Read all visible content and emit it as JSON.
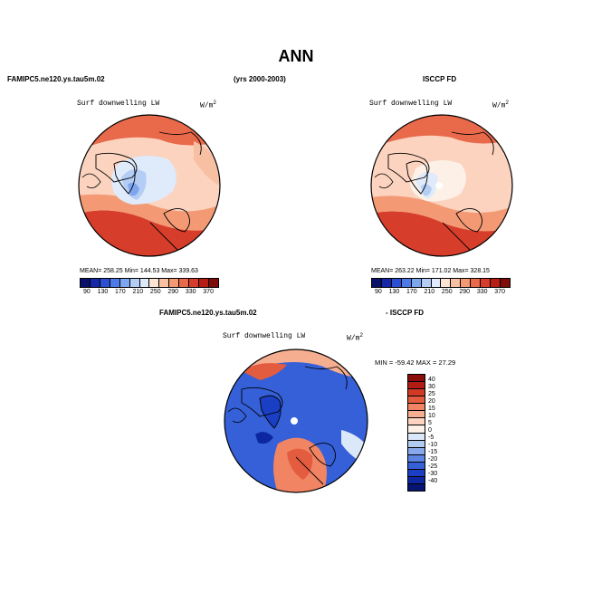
{
  "title": "ANN",
  "top_left_case": "FAMIPC5.ne120.ys.tau5m.02",
  "top_years": "(yrs 2000-2003)",
  "top_right_case": "ISCCP FD",
  "bottom_case": "FAMIPC5.ne120.ys.tau5m.02",
  "bottom_minus": "- ISCCP FD",
  "panels": {
    "left": {
      "variable": "Surf downwelling LW",
      "units": "W/m",
      "units_sup": "2",
      "stats": "MEAN= 258.25   Min= 144.53   Max= 339.63"
    },
    "right": {
      "variable": "Surf downwelling LW",
      "units": "W/m",
      "units_sup": "2",
      "stats": "MEAN= 263.22   Min= 171.02   Max= 328.15"
    },
    "diff": {
      "variable": "Surf downwelling LW",
      "units": "W/m",
      "units_sup": "2",
      "stats": "MIN = -59.42  MAX =  27.29"
    }
  },
  "colorbar_abs": {
    "ticks": [
      "90",
      "130",
      "170",
      "210",
      "250",
      "290",
      "330",
      "370"
    ],
    "colors": [
      "#08106a",
      "#1428a8",
      "#2a4fd0",
      "#4c7ae6",
      "#7ea6ee",
      "#b4cdf5",
      "#dfeafa",
      "#fde3d3",
      "#f8c0a3",
      "#f39a75",
      "#e9694b",
      "#d73d2b",
      "#b51d15",
      "#7e0c08"
    ]
  },
  "colorbar_diff": {
    "labels": [
      "40",
      "30",
      "25",
      "20",
      "15",
      "10",
      "5",
      "0",
      "-5",
      "-10",
      "-15",
      "-20",
      "-25",
      "-30",
      "-40"
    ],
    "colors": [
      "#8a0e0a",
      "#b31c14",
      "#d03a27",
      "#e45c3f",
      "#f08463",
      "#f6ae90",
      "#fbd3bf",
      "#fdf0e7",
      "#dbe8fa",
      "#b2cbf3",
      "#87a8ec",
      "#5b84e3",
      "#3560d8",
      "#1a3fc4",
      "#0c27a0",
      "#061572"
    ]
  }
}
